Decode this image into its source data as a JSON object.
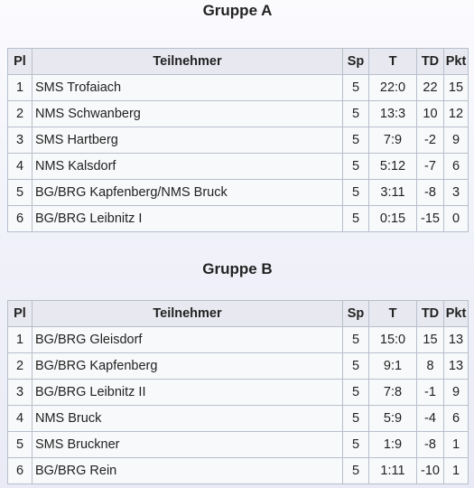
{
  "headers": {
    "pl": "Pl",
    "name": "Teilnehmer",
    "sp": "Sp",
    "t": "T",
    "td": "TD",
    "pkt": "Pkt"
  },
  "groups": [
    {
      "title": "Gruppe A",
      "rows": [
        {
          "pl": "1",
          "name": "SMS Trofaiach",
          "sp": "5",
          "t": "22:0",
          "td": "22",
          "pkt": "15"
        },
        {
          "pl": "2",
          "name": "NMS Schwanberg",
          "sp": "5",
          "t": "13:3",
          "td": "10",
          "pkt": "12"
        },
        {
          "pl": "3",
          "name": "SMS Hartberg",
          "sp": "5",
          "t": "7:9",
          "td": "-2",
          "pkt": "9"
        },
        {
          "pl": "4",
          "name": "NMS Kalsdorf",
          "sp": "5",
          "t": "5:12",
          "td": "-7",
          "pkt": "6"
        },
        {
          "pl": "5",
          "name": "BG/BRG Kapfenberg/NMS Bruck",
          "sp": "5",
          "t": "3:11",
          "td": "-8",
          "pkt": "3"
        },
        {
          "pl": "6",
          "name": "BG/BRG Leibnitz I",
          "sp": "5",
          "t": "0:15",
          "td": "-15",
          "pkt": "0"
        }
      ]
    },
    {
      "title": "Gruppe B",
      "rows": [
        {
          "pl": "1",
          "name": "BG/BRG Gleisdorf",
          "sp": "5",
          "t": "15:0",
          "td": "15",
          "pkt": "13"
        },
        {
          "pl": "2",
          "name": "BG/BRG Kapfenberg",
          "sp": "5",
          "t": "9:1",
          "td": "8",
          "pkt": "13"
        },
        {
          "pl": "3",
          "name": "BG/BRG Leibnitz II",
          "sp": "5",
          "t": "7:8",
          "td": "-1",
          "pkt": "9"
        },
        {
          "pl": "4",
          "name": "NMS Bruck",
          "sp": "5",
          "t": "5:9",
          "td": "-4",
          "pkt": "6"
        },
        {
          "pl": "5",
          "name": "SMS Bruckner",
          "sp": "5",
          "t": "1:9",
          "td": "-8",
          "pkt": "1"
        },
        {
          "pl": "6",
          "name": "BG/BRG Rein",
          "sp": "5",
          "t": "1:11",
          "td": "-10",
          "pkt": "1"
        }
      ]
    }
  ]
}
